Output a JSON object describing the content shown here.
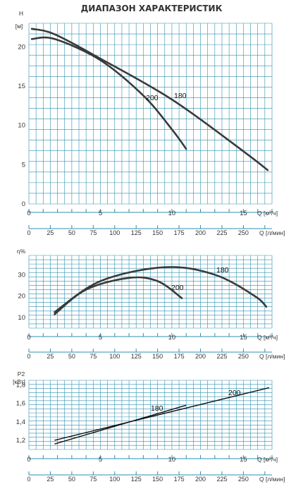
{
  "title": "ДИАПАЗОН ХАРАКТЕРИСТИК",
  "colors": {
    "grid": "#2e8fb0",
    "curve": "#3a3a3a",
    "line": "#111111",
    "text": "#333333"
  },
  "chart_data": [
    {
      "type": "line",
      "ylabel": "H",
      "yunit": "[м]",
      "ylim": [
        0,
        23
      ],
      "yticks": [
        "0",
        "5",
        "10",
        "15",
        "20"
      ],
      "xlim": [
        0,
        17
      ],
      "xticks_m3h": [
        "0",
        "5",
        "10",
        "15"
      ],
      "xlabel_m3h": "Q [м³/ч]",
      "xticks_lmin": [
        "0",
        "25",
        "50",
        "75",
        "100",
        "125",
        "150",
        "175",
        "200",
        "225",
        "250"
      ],
      "xlabel_lmin": "Q [л/мин]",
      "grid": true,
      "series": [
        {
          "name": "180",
          "points": [
            [
              0.2,
              21.0
            ],
            [
              1.8,
              21.0
            ],
            [
              5,
              18.3
            ],
            [
              8,
              13.8
            ],
            [
              10,
              9.5
            ],
            [
              11,
              7.0
            ]
          ],
          "dashed_segment": [
            0.2,
            1.8
          ]
        },
        {
          "name": "200",
          "points": [
            [
              0.2,
              22.3
            ],
            [
              1.8,
              21.6
            ],
            [
              5,
              18.5
            ],
            [
              10,
              13.3
            ],
            [
              15,
              6.7
            ],
            [
              16.7,
              4.3
            ]
          ],
          "dashed_segment_start": [
            0.2,
            1.8
          ],
          "dashed_segment_end": [
            15.8,
            16.7
          ]
        }
      ]
    },
    {
      "type": "line",
      "ylabel": "η%",
      "ylim": [
        5,
        39
      ],
      "yticks": [
        "10",
        "20",
        "30"
      ],
      "xlim": [
        0,
        17
      ],
      "xticks_m3h": [
        "0",
        "5",
        "10",
        "15"
      ],
      "xlabel_m3h": "Q [м³/ч]",
      "xticks_lmin": [
        "0",
        "25",
        "50",
        "75",
        "100",
        "125",
        "150",
        "175",
        "200",
        "225",
        "250"
      ],
      "xlabel_lmin": "Q [л/мин]",
      "grid": true,
      "series": [
        {
          "name": "180",
          "points": [
            [
              1.8,
              11.5
            ],
            [
              4,
              23
            ],
            [
              7,
              28.5
            ],
            [
              9,
              27
            ],
            [
              10.7,
              19
            ]
          ]
        },
        {
          "name": "200",
          "points": [
            [
              1.8,
              12.5
            ],
            [
              5,
              27
            ],
            [
              9.5,
              33.5
            ],
            [
              13,
              30
            ],
            [
              15.8,
              20
            ],
            [
              16.6,
              15
            ]
          ],
          "dashed_segment_end": [
            15.8,
            16.6
          ]
        }
      ]
    },
    {
      "type": "line",
      "ylabel": "P2",
      "yunit": "[кВт]",
      "ylim": [
        1.1,
        1.85
      ],
      "yticks": [
        "1,2",
        "1,4",
        "1,6",
        "1,8"
      ],
      "xlim": [
        0,
        17
      ],
      "xticks_m3h": [
        "0",
        "5",
        "10",
        "15"
      ],
      "xlabel_m3h": "Q [м³/ч]",
      "xticks_lmin": [
        "0",
        "25",
        "50",
        "75",
        "100",
        "125",
        "150",
        "175",
        "200",
        "225",
        "250"
      ],
      "xlabel_lmin": "Q [л/мин]",
      "grid": true,
      "series": [
        {
          "name": "180",
          "points": [
            [
              1.8,
              1.16
            ],
            [
              11,
              1.58
            ]
          ]
        },
        {
          "name": "200",
          "points": [
            [
              1.8,
              1.2
            ],
            [
              16.8,
              1.77
            ]
          ]
        }
      ]
    }
  ]
}
